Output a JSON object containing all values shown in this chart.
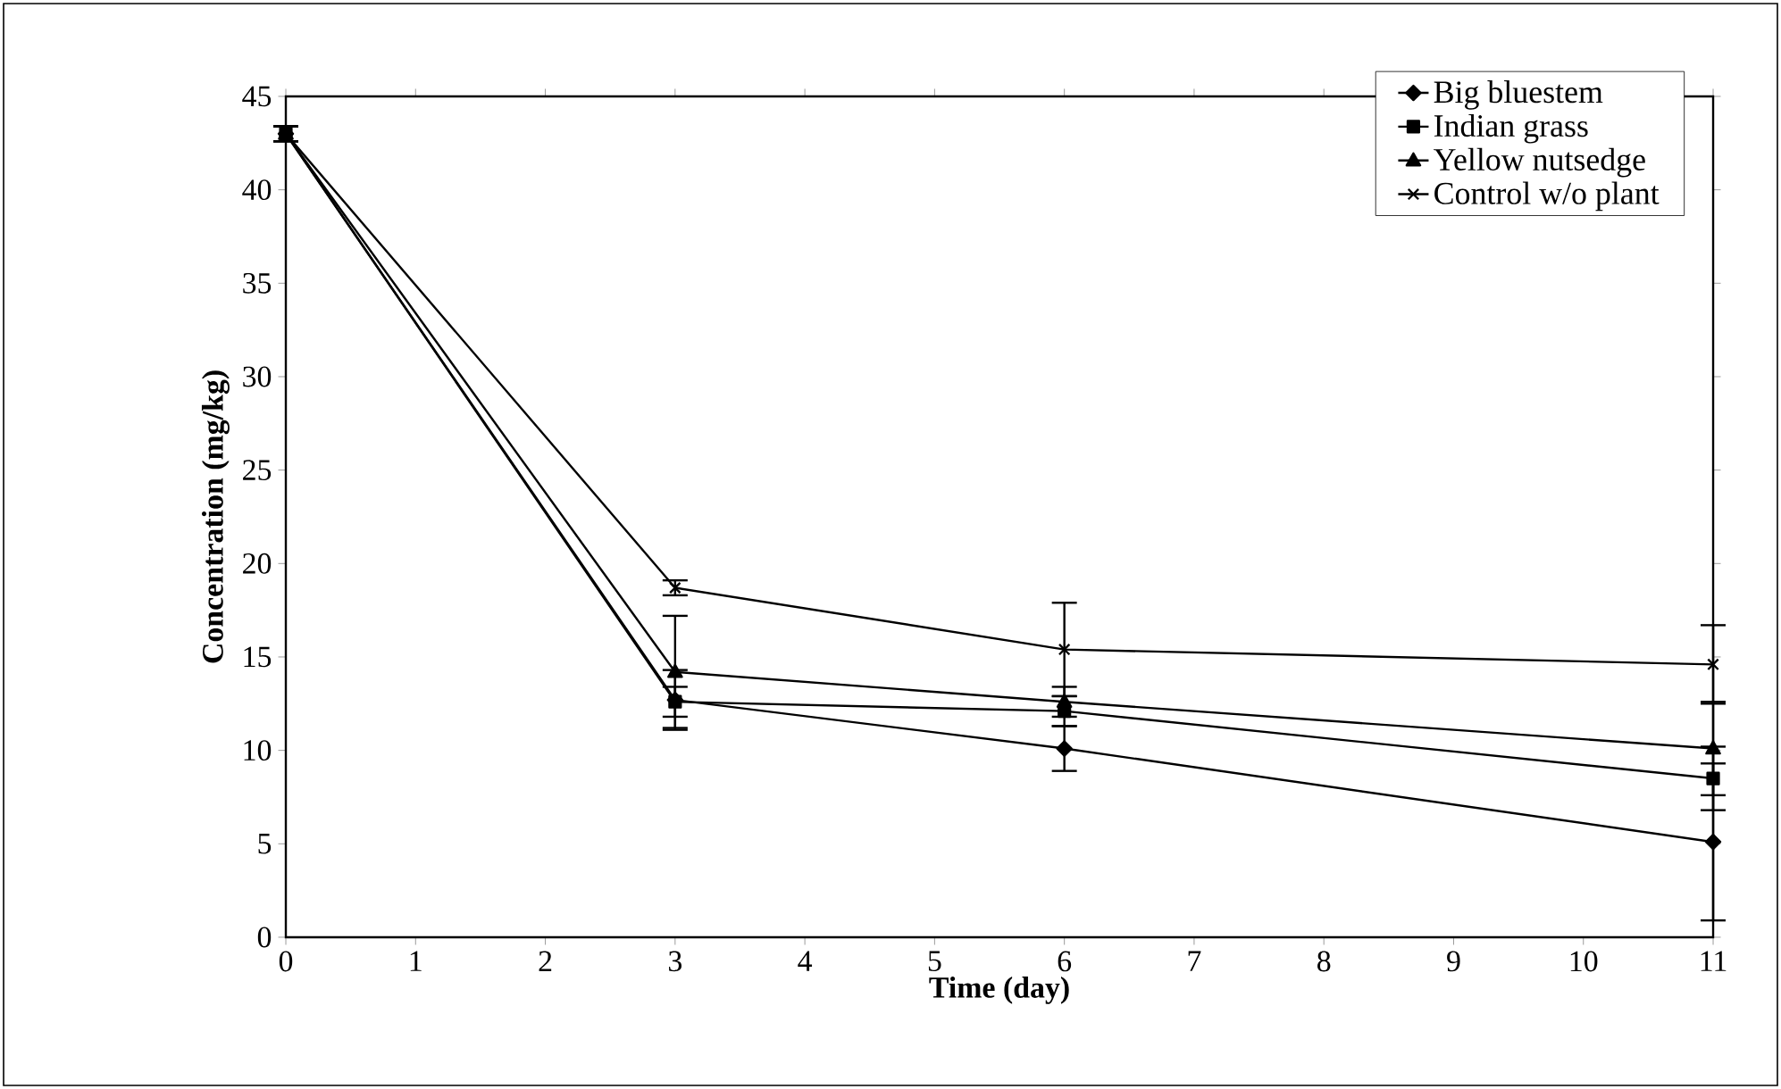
{
  "chart_data": {
    "type": "line",
    "xlabel": "Time (day)",
    "ylabel": "Concentration (mg/kg)",
    "x": [
      0,
      3,
      6,
      11
    ],
    "xlim": [
      0,
      11
    ],
    "xticks": [
      0,
      1,
      2,
      3,
      4,
      5,
      6,
      7,
      8,
      9,
      10,
      11
    ],
    "ylim": [
      0,
      45
    ],
    "yticks": [
      0,
      5,
      10,
      15,
      20,
      25,
      30,
      35,
      40,
      45
    ],
    "legend": "top right",
    "grid": false,
    "series": [
      {
        "name": "Big bluestem",
        "color": "#000000",
        "marker": "diamond",
        "values": [
          43,
          12.7,
          10.1,
          5.1
        ],
        "errors": [
          0.4,
          1.6,
          1.2,
          4.2
        ]
      },
      {
        "name": "Indian grass",
        "color": "#000000",
        "marker": "square",
        "values": [
          43,
          12.6,
          12.1,
          8.5
        ],
        "errors": [
          0.4,
          0.8,
          0.8,
          1.7
        ]
      },
      {
        "name": "Yellow nutsedge",
        "color": "#000000",
        "marker": "triangle",
        "values": [
          43,
          14.2,
          12.6,
          10.1
        ],
        "errors": [
          0.4,
          3,
          0.8,
          2.5
        ]
      },
      {
        "name": "Control w/o plant",
        "color": "#000000",
        "marker": "cross",
        "values": [
          43,
          18.7,
          15.4,
          14.6
        ],
        "errors": [
          0.4,
          0.4,
          2.5,
          2.1
        ]
      }
    ]
  }
}
